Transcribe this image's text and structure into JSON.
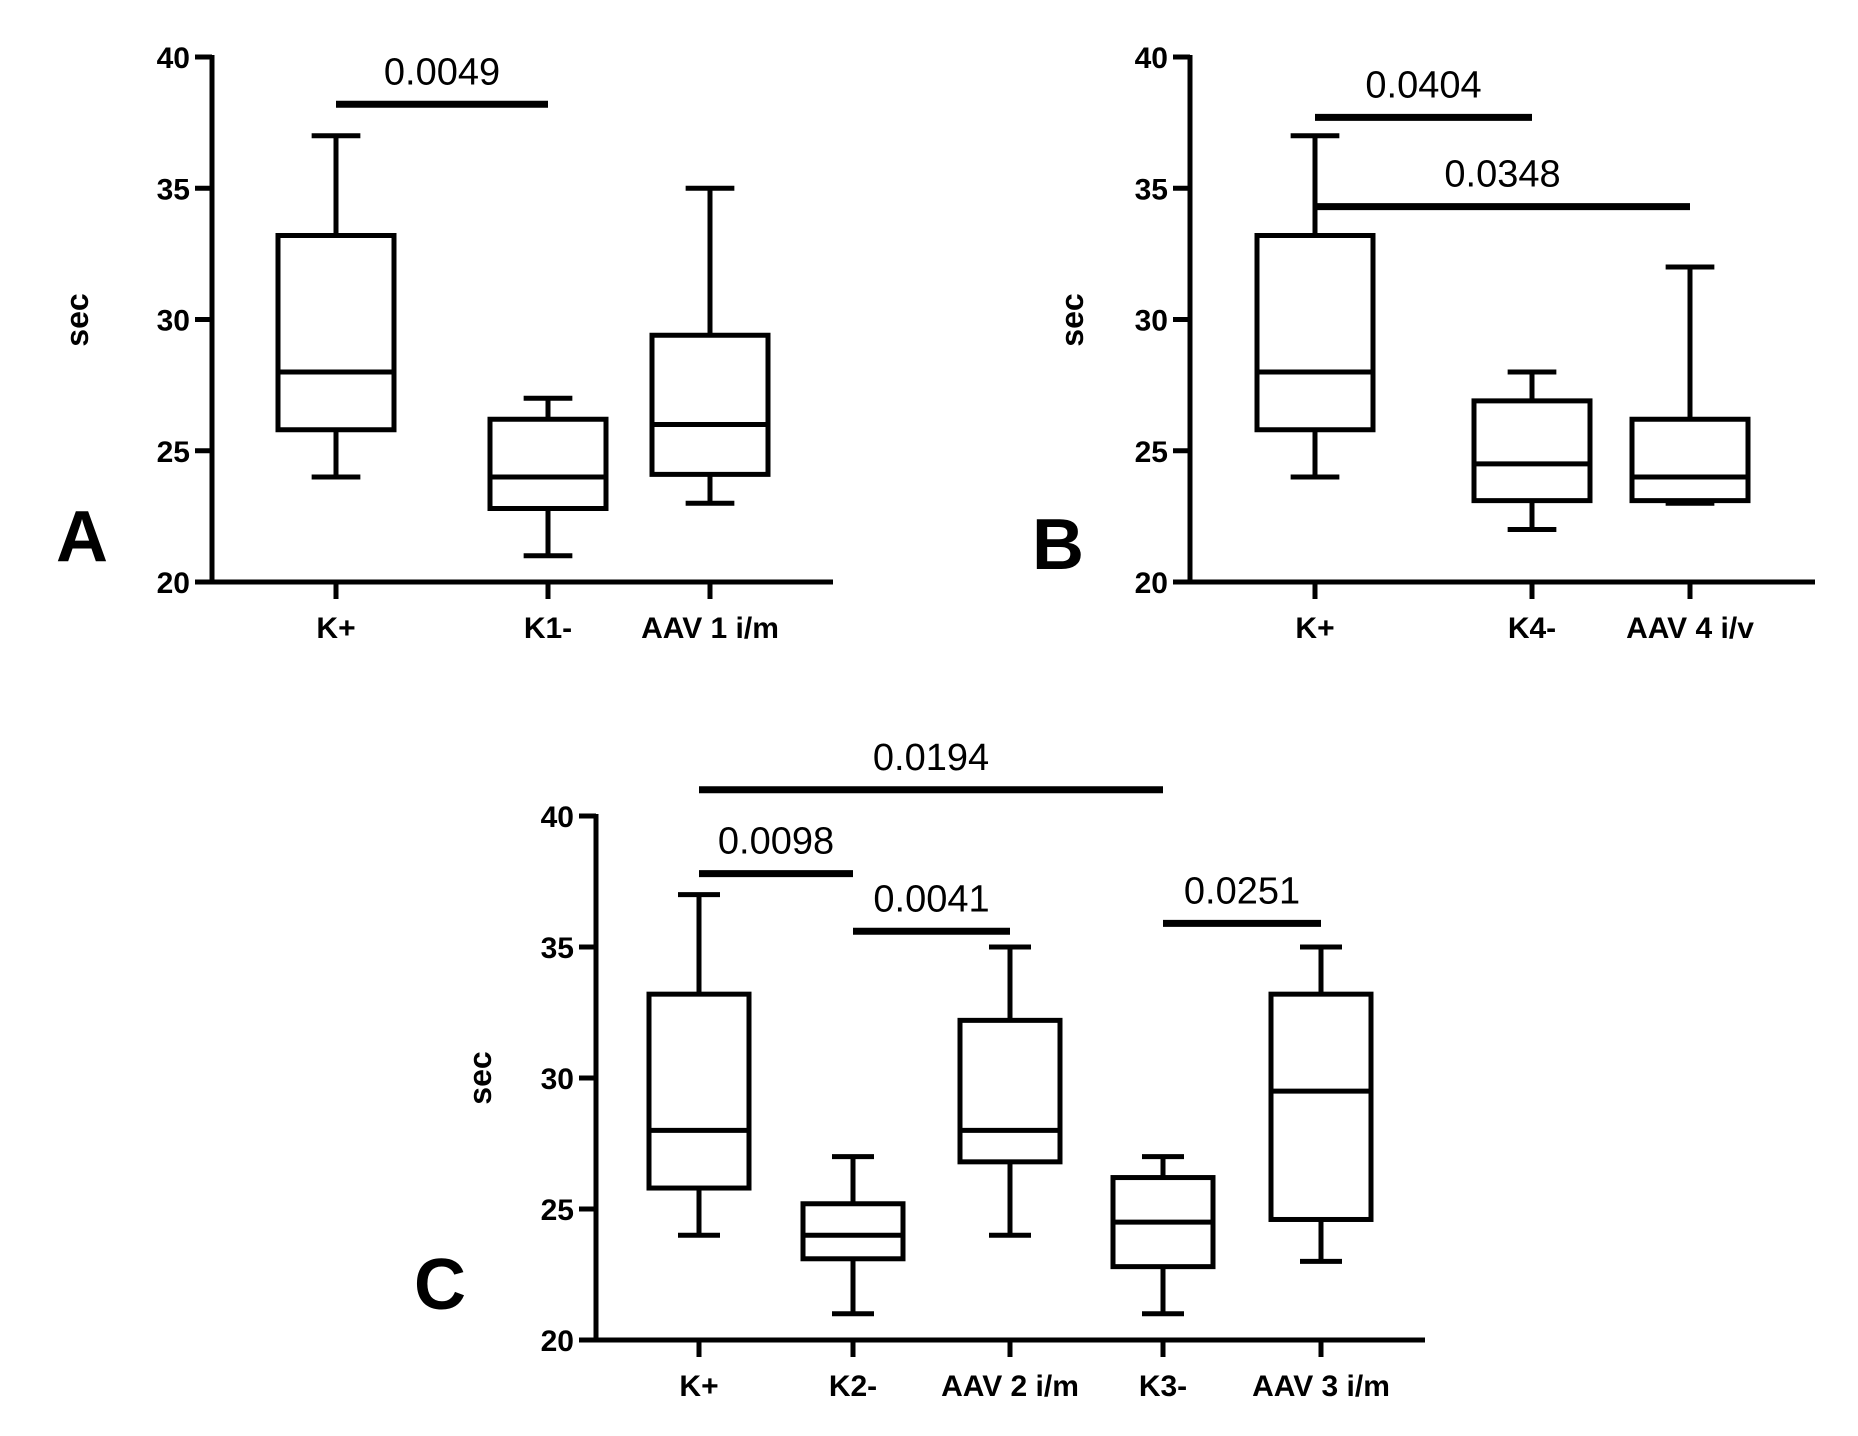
{
  "chart_data": [
    {
      "type": "box",
      "panel": "A",
      "ylabel": "sec",
      "ylim": [
        20,
        40
      ],
      "yticks": [
        "20",
        "25",
        "30",
        "35",
        "40"
      ],
      "categories": [
        "K+",
        "K1-",
        "AAV 1 i/m"
      ],
      "boxes": [
        {
          "min": 24,
          "q1": 25.8,
          "median": 28,
          "q3": 33.2,
          "max": 37
        },
        {
          "min": 21,
          "q1": 22.8,
          "median": 24,
          "q3": 26.2,
          "max": 27
        },
        {
          "min": 23,
          "q1": 24.1,
          "median": 26,
          "q3": 29.4,
          "max": 35
        }
      ],
      "comparisons": [
        {
          "from": 0,
          "to": 1,
          "y": 38.2,
          "label": "0.0049"
        }
      ]
    },
    {
      "type": "box",
      "panel": "B",
      "ylabel": "sec",
      "ylim": [
        20,
        40
      ],
      "yticks": [
        "20",
        "25",
        "30",
        "35",
        "40"
      ],
      "categories": [
        "K+",
        "K4-",
        "AAV 4 i/v"
      ],
      "boxes": [
        {
          "min": 24,
          "q1": 25.8,
          "median": 28,
          "q3": 33.2,
          "max": 37
        },
        {
          "min": 22,
          "q1": 23.1,
          "median": 24.5,
          "q3": 26.9,
          "max": 28
        },
        {
          "min": 23,
          "q1": 23.1,
          "median": 24,
          "q3": 26.2,
          "max": 32
        }
      ],
      "comparisons": [
        {
          "from": 0,
          "to": 1,
          "y": 37.7,
          "label": "0.0404"
        },
        {
          "from": 0,
          "to": 2,
          "y": 34.3,
          "label": "0.0348"
        }
      ]
    },
    {
      "type": "box",
      "panel": "C",
      "ylabel": "sec",
      "ylim": [
        20,
        40
      ],
      "yticks": [
        "20",
        "25",
        "30",
        "35",
        "40"
      ],
      "categories": [
        "K+",
        "K2-",
        "AAV 2 i/m",
        "K3-",
        "AAV 3 i/m"
      ],
      "boxes": [
        {
          "min": 24,
          "q1": 25.8,
          "median": 28,
          "q3": 33.2,
          "max": 37
        },
        {
          "min": 21,
          "q1": 23.1,
          "median": 24,
          "q3": 25.2,
          "max": 27
        },
        {
          "min": 24,
          "q1": 26.8,
          "median": 28,
          "q3": 32.2,
          "max": 35
        },
        {
          "min": 21,
          "q1": 22.8,
          "median": 24.5,
          "q3": 26.2,
          "max": 27
        },
        {
          "min": 23,
          "q1": 24.6,
          "median": 29.5,
          "q3": 33.2,
          "max": 35
        }
      ],
      "comparisons": [
        {
          "from": 0,
          "to": 3,
          "y": 41.0,
          "label": "0.0194"
        },
        {
          "from": 0,
          "to": 1,
          "y": 37.8,
          "label": "0.0098"
        },
        {
          "from": 1,
          "to": 2,
          "y": 35.6,
          "label": "0.0041"
        },
        {
          "from": 3,
          "to": 4,
          "y": 35.9,
          "label": "0.0251"
        }
      ]
    }
  ]
}
